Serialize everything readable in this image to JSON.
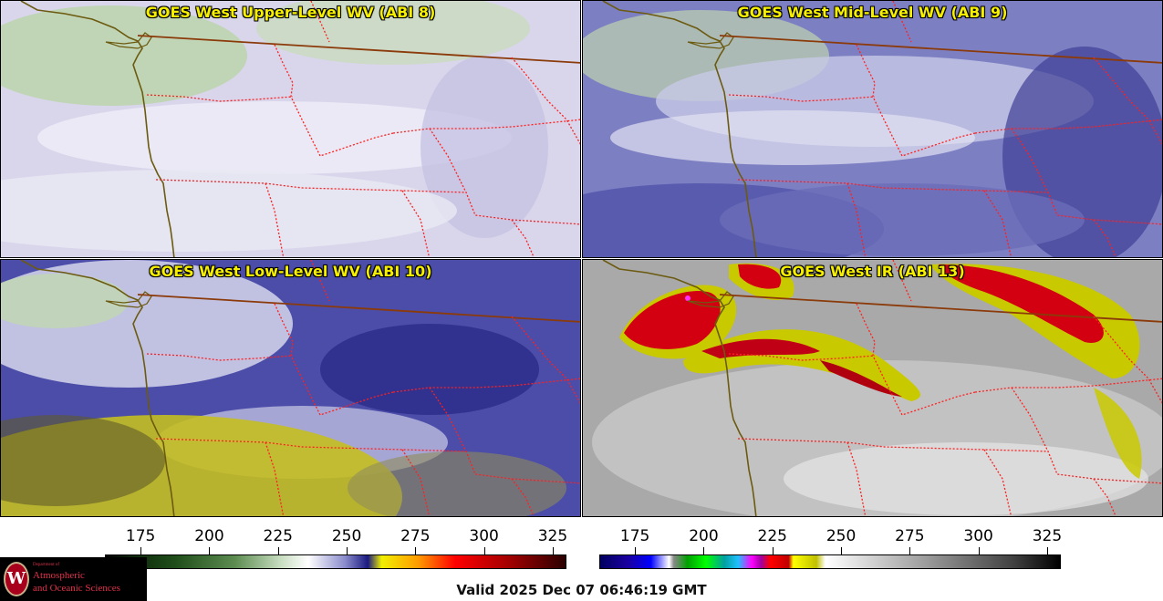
{
  "panels": [
    {
      "title": "GOES West Upper-Level WV (ABI 8)",
      "palette": "upper"
    },
    {
      "title": "GOES West Mid-Level WV (ABI 9)",
      "palette": "mid"
    },
    {
      "title": "GOES West Low-Level WV (ABI 10)",
      "palette": "low"
    },
    {
      "title": "GOES West IR (ABI 13)",
      "palette": "ir"
    }
  ],
  "colorbars": {
    "wv": {
      "ticks": [
        "175",
        "200",
        "225",
        "250",
        "275",
        "300",
        "325"
      ],
      "range": [
        162,
        330
      ]
    },
    "ir": {
      "ticks": [
        "175",
        "200",
        "225",
        "250",
        "275",
        "300",
        "325"
      ],
      "range": [
        162,
        330
      ]
    }
  },
  "valid_time": "Valid 2025 Dec 07 06:46:19 GMT",
  "logo": {
    "line0": "Department of",
    "line1": "Atmospheric",
    "line2": "and Oceanic Sciences"
  },
  "colors": {
    "coastline": "#6b5a10",
    "state_borders": "#ff2020",
    "intl_border": "#8b3a0a",
    "title": "#f6f000"
  }
}
